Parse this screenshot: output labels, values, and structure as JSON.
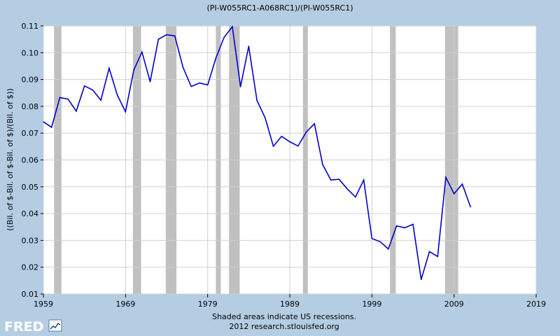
{
  "chart_data": {
    "type": "line",
    "title": "(PI-W055RC1-A068RC1)/(PI-W055RC1)",
    "ylabel": "((Bil. of $-Bil. of $-Bil. of $)/(Bil. of $))",
    "xlim": [
      1959,
      2019
    ],
    "ylim": [
      0.01,
      0.11
    ],
    "xticks": [
      "1959",
      "1969",
      "1979",
      "1989",
      "1999",
      "2009",
      "2019"
    ],
    "yticks": [
      "0.01",
      "0.02",
      "0.03",
      "0.04",
      "0.05",
      "0.06",
      "0.07",
      "0.08",
      "0.09",
      "0.10",
      "0.11"
    ],
    "grid": true,
    "series_color": "#0000cc",
    "recession_color": "#c0c0c0",
    "recessions": [
      [
        1960.3,
        1961.2
      ],
      [
        1969.9,
        1970.9
      ],
      [
        1973.9,
        1975.2
      ],
      [
        1980.0,
        1980.6
      ],
      [
        1981.6,
        1982.9
      ],
      [
        1990.6,
        1991.2
      ],
      [
        2001.2,
        2001.9
      ],
      [
        2007.9,
        2009.5
      ]
    ],
    "x": [
      1959,
      1960,
      1961,
      1962,
      1963,
      1964,
      1965,
      1966,
      1967,
      1968,
      1969,
      1970,
      1971,
      1972,
      1973,
      1974,
      1975,
      1976,
      1977,
      1978,
      1979,
      1980,
      1981,
      1982,
      1983,
      1984,
      1985,
      1986,
      1987,
      1988,
      1989,
      1990,
      1991,
      1992,
      1993,
      1994,
      1995,
      1996,
      1997,
      1998,
      1999,
      2000,
      2001,
      2002,
      2003,
      2004,
      2005,
      2006,
      2007,
      2008,
      2009,
      2010,
      2011
    ],
    "y": [
      0.0742,
      0.0722,
      0.0833,
      0.0827,
      0.0782,
      0.0876,
      0.0861,
      0.0823,
      0.0942,
      0.0842,
      0.078,
      0.0935,
      0.1003,
      0.0892,
      0.105,
      0.1067,
      0.1063,
      0.0945,
      0.0874,
      0.0887,
      0.088,
      0.098,
      0.1057,
      0.1097,
      0.0873,
      0.1024,
      0.0822,
      0.0757,
      0.0651,
      0.0688,
      0.0668,
      0.0652,
      0.0704,
      0.0735,
      0.0583,
      0.0525,
      0.0528,
      0.0492,
      0.0462,
      0.0525,
      0.0307,
      0.0295,
      0.0268,
      0.0354,
      0.0347,
      0.036,
      0.0154,
      0.0258,
      0.024,
      0.0535,
      0.0474,
      0.051,
      0.0425
    ]
  },
  "footer": {
    "note_line1": "Shaded areas indicate US recessions.",
    "note_line2": "2012 research.stlouisfed.org",
    "logo_text": "FRED"
  }
}
